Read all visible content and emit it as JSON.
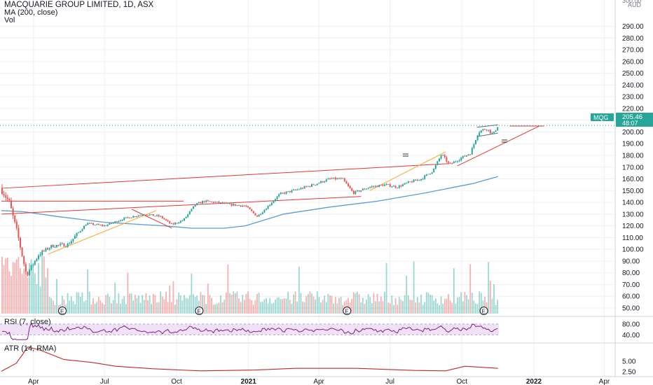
{
  "header": {
    "title": "MACQUARIE GROUP LIMITED, 1D, ASX",
    "ma_label": "MA (200, close)",
    "vol_label": "Vol",
    "currency": "AUD",
    "top_partial": "300.00"
  },
  "rsi_panel": {
    "label": "RSI (7, close)",
    "ticks": [
      "80.00",
      "40.00"
    ]
  },
  "atr_panel": {
    "label": "ATR (14, RMA)",
    "ticks": [
      "5.00",
      "2.50"
    ]
  },
  "price_tag": {
    "symbol": "MQG",
    "price": "205.46",
    "countdown": "48:07"
  },
  "earnings_marker": "E",
  "colors": {
    "up": "#26a69a",
    "down": "#ef5350",
    "ma": "#5b9bd5",
    "trend_red": "#e53935",
    "trend_orange": "#ffa726",
    "rsi": "#7e1f86",
    "rsi_band": "#f1e1f7",
    "atr": "#c62828",
    "grid": "#eef1f5",
    "axis_text": "#131722",
    "tag": "#26a69a"
  },
  "chart_data": {
    "type": "candlestick",
    "title": "MACQUARIE GROUP LIMITED, 1D, ASX",
    "series_name": "MQG",
    "currency": "AUD",
    "y_axis_ticks": [
      50,
      60,
      70,
      80,
      90,
      100,
      110,
      120,
      130,
      140,
      150,
      160,
      170,
      180,
      190,
      200,
      210,
      220,
      230,
      240,
      250,
      260,
      270,
      280,
      290
    ],
    "y_range": [
      45,
      302
    ],
    "x_axis_labels": [
      "Apr",
      "Jul",
      "Oct",
      "2021",
      "Apr",
      "Jul",
      "Oct",
      "2022",
      "Apr"
    ],
    "close_path": [
      {
        "date": "2020-02-20",
        "close": 152
      },
      {
        "date": "2020-03-01",
        "close": 140
      },
      {
        "date": "2020-03-12",
        "close": 112
      },
      {
        "date": "2020-03-23",
        "close": 78
      },
      {
        "date": "2020-04-08",
        "close": 96
      },
      {
        "date": "2020-04-25",
        "close": 103
      },
      {
        "date": "2020-05-15",
        "close": 104
      },
      {
        "date": "2020-06-08",
        "close": 122
      },
      {
        "date": "2020-07-01",
        "close": 120
      },
      {
        "date": "2020-07-25",
        "close": 126
      },
      {
        "date": "2020-08-20",
        "close": 130
      },
      {
        "date": "2020-09-10",
        "close": 128
      },
      {
        "date": "2020-09-25",
        "close": 121
      },
      {
        "date": "2020-10-10",
        "close": 125
      },
      {
        "date": "2020-10-25",
        "close": 138
      },
      {
        "date": "2020-11-05",
        "close": 141
      },
      {
        "date": "2020-11-20",
        "close": 140
      },
      {
        "date": "2020-12-10",
        "close": 138
      },
      {
        "date": "2020-12-28",
        "close": 137
      },
      {
        "date": "2021-01-12",
        "close": 128
      },
      {
        "date": "2021-01-22",
        "close": 134
      },
      {
        "date": "2021-02-10",
        "close": 147
      },
      {
        "date": "2021-03-05",
        "close": 151
      },
      {
        "date": "2021-03-25",
        "close": 155
      },
      {
        "date": "2021-04-15",
        "close": 160
      },
      {
        "date": "2021-05-01",
        "close": 160
      },
      {
        "date": "2021-05-15",
        "close": 148
      },
      {
        "date": "2021-06-05",
        "close": 153
      },
      {
        "date": "2021-06-25",
        "close": 155
      },
      {
        "date": "2021-07-10",
        "close": 153
      },
      {
        "date": "2021-07-25",
        "close": 157
      },
      {
        "date": "2021-08-10",
        "close": 160
      },
      {
        "date": "2021-08-25",
        "close": 167
      },
      {
        "date": "2021-09-05",
        "close": 181
      },
      {
        "date": "2021-09-15",
        "close": 172
      },
      {
        "date": "2021-09-25",
        "close": 176
      },
      {
        "date": "2021-10-12",
        "close": 182
      },
      {
        "date": "2021-10-22",
        "close": 200
      },
      {
        "date": "2021-11-01",
        "close": 203
      },
      {
        "date": "2021-11-10",
        "close": 198
      },
      {
        "date": "2021-11-16",
        "close": 205.46
      }
    ],
    "ma200": [
      {
        "date": "2020-02-20",
        "value": 133
      },
      {
        "date": "2020-03-20",
        "value": 132
      },
      {
        "date": "2020-05-01",
        "value": 128
      },
      {
        "date": "2020-07-01",
        "value": 123
      },
      {
        "date": "2020-09-15",
        "value": 120
      },
      {
        "date": "2020-10-20",
        "value": 118
      },
      {
        "date": "2020-12-01",
        "value": 118
      },
      {
        "date": "2020-12-28",
        "value": 120
      },
      {
        "date": "2021-02-15",
        "value": 130
      },
      {
        "date": "2021-04-15",
        "value": 136
      },
      {
        "date": "2021-06-15",
        "value": 141
      },
      {
        "date": "2021-08-15",
        "value": 148
      },
      {
        "date": "2021-10-15",
        "value": 156
      },
      {
        "date": "2021-11-16",
        "value": 162
      }
    ],
    "last_price": 205.46,
    "countdown": "48:07",
    "trend_lines": [
      {
        "color": "red",
        "from": {
          "date": "2020-02-20",
          "value": 152
        },
        "to": {
          "date": "2021-09-15",
          "value": 173
        }
      },
      {
        "color": "red",
        "from": {
          "date": "2020-02-20",
          "value": 141
        },
        "to": {
          "date": "2020-10-10",
          "value": 141
        }
      },
      {
        "color": "red",
        "from": {
          "date": "2020-02-20",
          "value": 130
        },
        "to": {
          "date": "2021-05-25",
          "value": 145
        }
      },
      {
        "color": "red",
        "from": {
          "date": "2020-08-05",
          "value": 134
        },
        "to": {
          "date": "2020-09-25",
          "value": 118
        }
      },
      {
        "color": "orange",
        "from": {
          "date": "2020-04-20",
          "value": 96
        },
        "to": {
          "date": "2020-09-05",
          "value": 133
        }
      },
      {
        "color": "orange",
        "from": {
          "date": "2021-06-05",
          "value": 150
        },
        "to": {
          "date": "2021-09-10",
          "value": 183
        }
      },
      {
        "color": "red",
        "from": {
          "date": "2021-09-25",
          "value": 171
        },
        "to": {
          "date": "2022-01-08",
          "value": 205
        }
      },
      {
        "color": "red",
        "from": {
          "date": "2021-12-01",
          "value": 205
        },
        "to": {
          "date": "2022-01-14",
          "value": 205
        }
      },
      {
        "color": "blue",
        "from": {
          "date": "2021-10-20",
          "value": 204
        },
        "to": {
          "date": "2021-11-16",
          "value": 206
        }
      },
      {
        "color": "blue",
        "from": {
          "date": "2021-10-20",
          "value": 196
        },
        "to": {
          "date": "2021-11-16",
          "value": 199
        }
      }
    ],
    "earnings_events": [
      "2020-05-08",
      "2020-10-30",
      "2021-05-07",
      "2021-10-29"
    ],
    "rsi": {
      "label": "RSI (7, close)",
      "band": [
        40,
        80
      ],
      "ticks": [
        80,
        40
      ]
    },
    "atr": {
      "label": "ATR (14, RMA)",
      "ticks": [
        5.0,
        2.5
      ],
      "points": [
        {
          "date": "2020-02-20",
          "value": 2.6
        },
        {
          "date": "2020-03-10",
          "value": 4.5
        },
        {
          "date": "2020-03-25",
          "value": 8.4
        },
        {
          "date": "2020-04-10",
          "value": 7.6
        },
        {
          "date": "2020-05-10",
          "value": 5.4
        },
        {
          "date": "2020-06-15",
          "value": 4.7
        },
        {
          "date": "2020-07-15",
          "value": 3.8
        },
        {
          "date": "2020-09-01",
          "value": 3.2
        },
        {
          "date": "2020-11-01",
          "value": 2.7
        },
        {
          "date": "2021-01-10",
          "value": 2.9
        },
        {
          "date": "2021-03-01",
          "value": 3.3
        },
        {
          "date": "2021-05-20",
          "value": 3.3
        },
        {
          "date": "2021-08-01",
          "value": 2.8
        },
        {
          "date": "2021-09-10",
          "value": 2.7
        },
        {
          "date": "2021-10-05",
          "value": 3.8
        },
        {
          "date": "2021-11-16",
          "value": 3.3
        }
      ]
    }
  }
}
